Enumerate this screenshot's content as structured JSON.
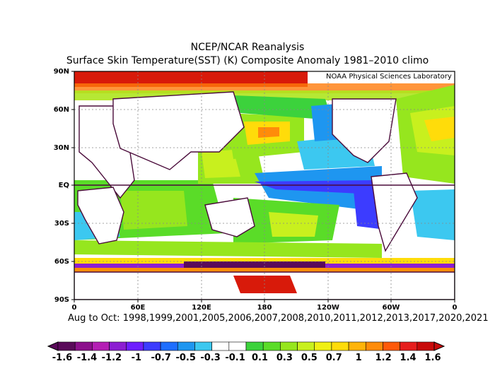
{
  "title_line1": "NCEP/NCAR Reanalysis",
  "title_line2": "Surface Skin Temperature(SST) (K) Composite Anomaly 1981–2010 climo",
  "credit": "NOAA Physical Sciences Laboratory",
  "period": "Aug to Oct: 1998,1999,2001,2005,2006,2007,2008,2010,2011,2012,2013,2017,2020,2021",
  "lat_labels": [
    "90N",
    "60N",
    "30N",
    "EQ",
    "30S",
    "60S",
    "90S"
  ],
  "lon_labels": [
    "0",
    "60E",
    "120E",
    "180",
    "120W",
    "60W",
    "0"
  ],
  "colorbar": {
    "labels": [
      "-1.6",
      "-1.4",
      "-1.2",
      "-1",
      "-0.7",
      "-0.5",
      "-0.3",
      "-0.1",
      "0.1",
      "0.3",
      "0.5",
      "0.7",
      "1",
      "1.2",
      "1.4",
      "1.6"
    ],
    "colors": [
      "#5a0a5a",
      "#8c0f8c",
      "#b41eb4",
      "#8c1ed2",
      "#6e1eff",
      "#3c3cff",
      "#1e6eff",
      "#1e96f0",
      "#3cc8f0",
      "#ffffff",
      "#ffffff",
      "#3cd23c",
      "#5adc28",
      "#96e61e",
      "#c8f01e",
      "#f0f014",
      "#ffdc0a",
      "#ffb40a",
      "#ff8c0a",
      "#ff5a0a",
      "#e61e1e",
      "#c80a0a"
    ]
  }
}
